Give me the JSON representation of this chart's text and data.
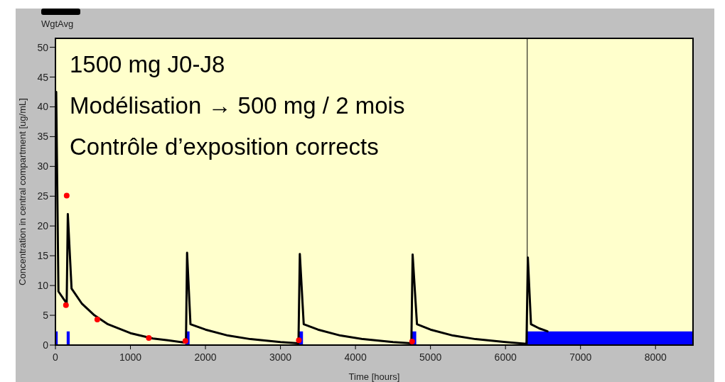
{
  "chart_data": {
    "type": "line",
    "xlabel": "Time [hours]",
    "ylabel": "Concentration in central compartment [ug/mL]",
    "annotations": [
      "1500 mg J0-J8",
      "Modélisation → 500 mg / 2 mois",
      "Contrôle d’exposition corrects"
    ],
    "xlim": [
      0,
      8500
    ],
    "ylim": [
      0,
      51.5
    ],
    "xticks": [
      0,
      1000,
      2000,
      3000,
      4000,
      5000,
      6000,
      7000,
      8000
    ],
    "yticks": [
      0,
      5,
      10,
      15,
      20,
      25,
      30,
      35,
      40,
      45,
      50
    ],
    "grid": false,
    "legend": "top left",
    "ref_lines": [
      {
        "axis": "x",
        "value": 6290,
        "color": "#000000"
      }
    ],
    "series": [
      {
        "type": "area",
        "color": "#0000ff",
        "x": [
          0,
          0,
          30,
          30,
          150,
          150,
          190,
          190,
          1733,
          1733,
          1788,
          1788,
          3245,
          3245,
          3300,
          3300,
          4755,
          4755,
          4810,
          4810,
          6290,
          6290,
          8500,
          8500
        ],
        "values": [
          0,
          2.3,
          2.3,
          0,
          0,
          2.3,
          2.3,
          0,
          0,
          2.3,
          2.3,
          0,
          0,
          2.3,
          2.3,
          0,
          0,
          2.3,
          2.3,
          0,
          0,
          2.3,
          2.3,
          0
        ]
      },
      {
        "name": "WgtAvg",
        "color": "#000000",
        "x": [
          10,
          40,
          150,
          165,
          215,
          350,
          520,
          700,
          1000,
          1300,
          1500,
          1740,
          1755,
          1800,
          2000,
          2300,
          2600,
          3000,
          3240,
          3258,
          3310,
          3500,
          3800,
          4100,
          4500,
          4745,
          4762,
          4820,
          5000,
          5300,
          5600,
          6000,
          6280,
          6298,
          6340,
          6450,
          6560
        ],
        "values": [
          42.5,
          9,
          7,
          22,
          9.5,
          7,
          5,
          3.5,
          2,
          1.1,
          0.8,
          0.4,
          15.5,
          3.5,
          2.6,
          1.6,
          1,
          0.5,
          0.3,
          15.3,
          3.5,
          2.6,
          1.6,
          1,
          0.5,
          0.3,
          15.2,
          3.5,
          2.6,
          1.6,
          1,
          0.5,
          0.2,
          14.7,
          3.5,
          2.8,
          2.3
        ]
      },
      {
        "type": "scatter",
        "color": "#ff0000",
        "marker": "circle",
        "x": [
          150,
          140,
          558,
          1245,
          1733,
          3245,
          4755
        ],
        "values": [
          25.1,
          6.7,
          4.3,
          1.2,
          0.7,
          0.8,
          0.6
        ]
      }
    ]
  }
}
